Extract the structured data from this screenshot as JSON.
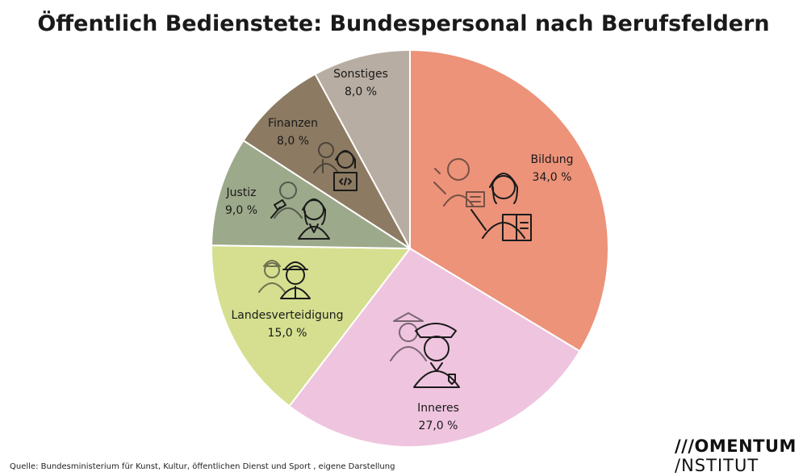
{
  "title": "Öffentlich Bedienstete: Bundespersonal nach Berufsfeldern",
  "source": "Quelle: Bundesministerium für Kunst, Kultur, öffentlichen Dienst und Sport , eigene Darstellung",
  "logo": {
    "line1": "///OMENTUM",
    "line2": "/NSTITUT"
  },
  "chart_data": {
    "type": "pie",
    "title": "Öffentlich Bedienstete: Bundespersonal nach Berufsfeldern",
    "start_angle_deg": 0,
    "direction": "clockwise",
    "slices": [
      {
        "label": "Bildung",
        "value": 34.0,
        "value_label": "34,0 %",
        "color": "#ec937a",
        "icon": "teachers-icon"
      },
      {
        "label": "Inneres",
        "value": 27.0,
        "value_label": "27,0 %",
        "color": "#efc4df",
        "icon": "police-officers-icon"
      },
      {
        "label": "Landesverteidigung",
        "value": 15.0,
        "value_label": "15,0 %",
        "color": "#d5df8f",
        "icon": "soldiers-icon"
      },
      {
        "label": "Justiz",
        "value": 9.0,
        "value_label": "9,0 %",
        "color": "#9ca98b",
        "icon": "judge-lawyer-icon"
      },
      {
        "label": "Finanzen",
        "value": 8.0,
        "value_label": "8,0 %",
        "color": "#8c7a62",
        "icon": "finance-workers-icon"
      },
      {
        "label": "Sonstiges",
        "value": 8.0,
        "value_label": "8,0 %",
        "color": "#b8ada2",
        "icon": ""
      }
    ]
  }
}
